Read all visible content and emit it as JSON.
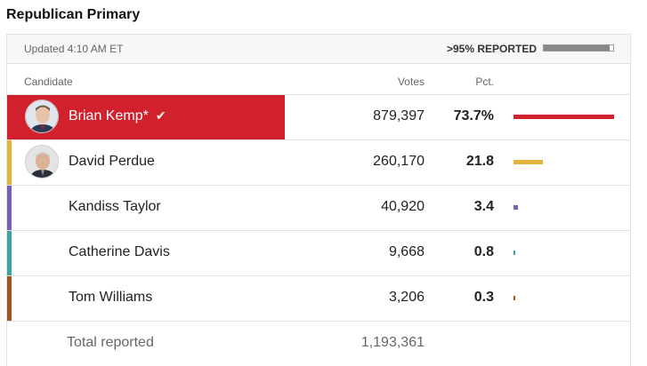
{
  "title": "Republican Primary",
  "updated": "Updated 4:10 AM ET",
  "reported": {
    "label": ">95% REPORTED",
    "fraction": 0.95
  },
  "headers": {
    "candidate": "Candidate",
    "votes": "Votes",
    "pct": "Pct."
  },
  "max_pct": 73.7,
  "candidates": [
    {
      "name": "Brian Kemp*",
      "votes": "879,397",
      "pct": "73.7%",
      "pct_value": 73.7,
      "color": "#d0212c",
      "winner": true,
      "avatar": "candidate-photo-icon"
    },
    {
      "name": "David Perdue",
      "votes": "260,170",
      "pct": "21.8",
      "pct_value": 21.8,
      "color": "#e3b43b",
      "winner": false,
      "avatar": "candidate-photo-icon"
    },
    {
      "name": "Kandiss Taylor",
      "votes": "40,920",
      "pct": "3.4",
      "pct_value": 3.4,
      "color": "#7b5eb8",
      "winner": false
    },
    {
      "name": "Catherine Davis",
      "votes": "9,668",
      "pct": "0.8",
      "pct_value": 0.8,
      "color": "#3aa5a0",
      "winner": false
    },
    {
      "name": "Tom Williams",
      "votes": "3,206",
      "pct": "0.3",
      "pct_value": 0.3,
      "color": "#a0561d",
      "winner": false
    }
  ],
  "total": {
    "label": "Total reported",
    "votes": "1,193,361"
  }
}
